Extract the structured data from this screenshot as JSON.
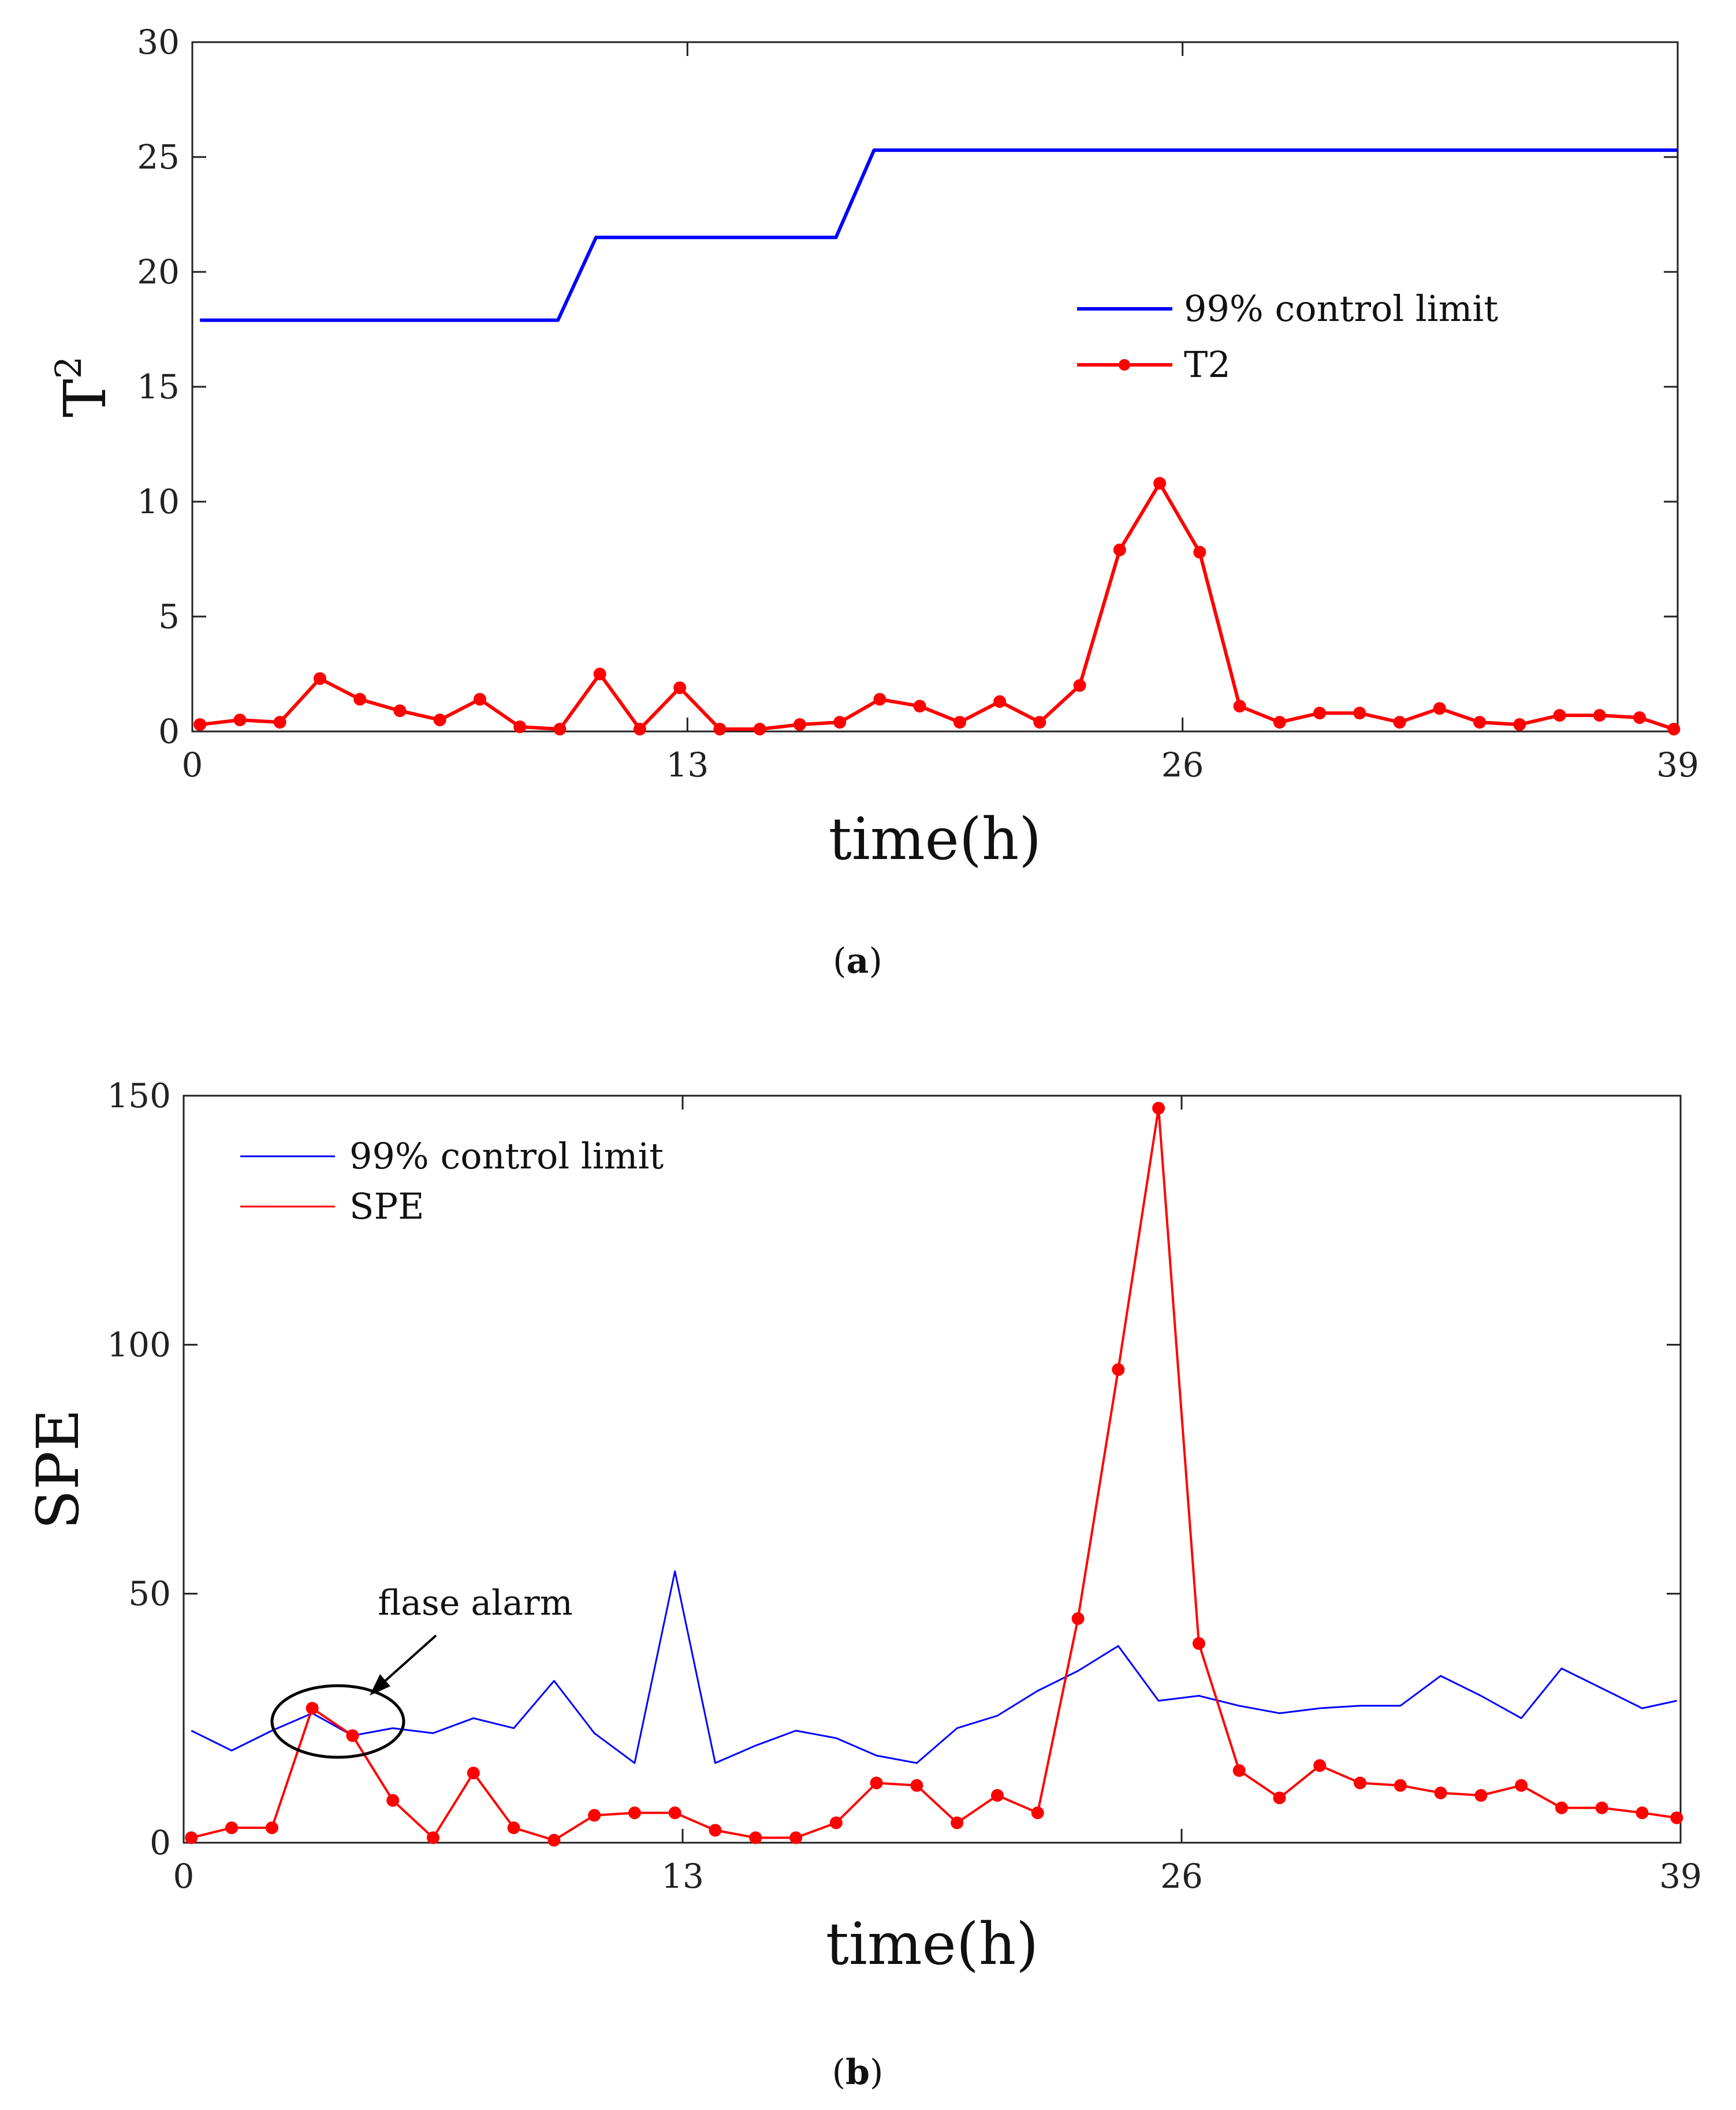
{
  "chart_data": [
    {
      "type": "line",
      "panel": "a",
      "xlabel": "time(h)",
      "ylabel_base": "T",
      "ylabel_sup": "2",
      "xlim": [
        0,
        39
      ],
      "ylim": [
        0,
        30
      ],
      "xticks": [
        0,
        13,
        26,
        39
      ],
      "yticks": [
        0,
        5,
        10,
        15,
        20,
        25,
        30
      ],
      "legend_position": "center-right",
      "panel_label": {
        "open": "(",
        "letter": "a",
        "close": ")"
      },
      "series": [
        {
          "name": "99% control limit",
          "color": "#0000ff",
          "markers": false,
          "x": [
            0.2,
            9.6,
            10.6,
            16.9,
            17.9,
            39
          ],
          "y": [
            17.9,
            17.9,
            21.5,
            21.5,
            25.3,
            25.3
          ]
        },
        {
          "name": "T2",
          "color": "#ff0000",
          "markers": true,
          "x": [
            0.2,
            1.25,
            2.3,
            3.35,
            4.4,
            5.45,
            6.5,
            7.55,
            8.6,
            9.65,
            10.7,
            11.75,
            12.8,
            13.85,
            14.9,
            15.95,
            17.0,
            18.05,
            19.1,
            20.15,
            21.2,
            22.25,
            23.3,
            24.35,
            25.4,
            26.45,
            27.5,
            28.55,
            29.6,
            30.65,
            31.7,
            32.75,
            33.8,
            34.85,
            35.9,
            36.95,
            38.0,
            38.9
          ],
          "y": [
            0.3,
            0.5,
            0.4,
            2.3,
            1.4,
            0.9,
            0.5,
            1.4,
            0.2,
            0.1,
            2.5,
            0.1,
            1.9,
            0.1,
            0.1,
            0.3,
            0.4,
            1.4,
            1.1,
            0.4,
            1.3,
            0.4,
            2.0,
            7.9,
            10.8,
            7.8,
            1.1,
            0.4,
            0.8,
            0.8,
            0.4,
            1.0,
            0.4,
            0.3,
            0.7,
            0.7,
            0.6,
            0.1
          ]
        }
      ]
    },
    {
      "type": "line",
      "panel": "b",
      "xlabel": "time(h)",
      "ylabel": "SPE",
      "xlim": [
        0,
        39
      ],
      "ylim": [
        0,
        150
      ],
      "xticks": [
        0,
        13,
        26,
        39
      ],
      "yticks": [
        0,
        50,
        100,
        150
      ],
      "legend_position": "top-left",
      "annotation": {
        "text": "flase alarm",
        "target_x": 4.1,
        "target_y": 23
      },
      "panel_label": {
        "open": "(",
        "letter": "b",
        "close": ")"
      },
      "series": [
        {
          "name": "99% control limit",
          "color": "#0000ff",
          "markers": false,
          "x": [
            0.2,
            1.25,
            2.3,
            3.35,
            4.4,
            5.45,
            6.5,
            7.55,
            8.6,
            9.65,
            10.7,
            11.75,
            12.8,
            13.85,
            14.9,
            15.95,
            17.0,
            18.05,
            19.1,
            20.15,
            21.2,
            22.25,
            23.3,
            24.35,
            25.4,
            26.45,
            27.5,
            28.55,
            29.6,
            30.65,
            31.7,
            32.75,
            33.8,
            34.85,
            35.9,
            36.95,
            38.0,
            38.9
          ],
          "y": [
            22.5,
            18.5,
            22.5,
            26.0,
            21.5,
            23.0,
            22.0,
            25.0,
            23.0,
            32.5,
            22.0,
            16.0,
            54.5,
            16.0,
            19.5,
            22.5,
            21.0,
            17.5,
            16.0,
            23.0,
            25.5,
            30.5,
            34.5,
            39.5,
            28.5,
            29.5,
            27.5,
            26.0,
            27.0,
            27.5,
            27.5,
            33.5,
            29.5,
            25.0,
            35.0,
            31.0,
            27.0,
            28.5
          ]
        },
        {
          "name": "SPE",
          "color": "#ff0000",
          "markers": true,
          "x": [
            0.2,
            1.25,
            2.3,
            3.35,
            4.4,
            5.45,
            6.5,
            7.55,
            8.6,
            9.65,
            10.7,
            11.75,
            12.8,
            13.85,
            14.9,
            15.95,
            17.0,
            18.05,
            19.1,
            20.15,
            21.2,
            22.25,
            23.3,
            24.35,
            25.4,
            26.45,
            27.5,
            28.55,
            29.6,
            30.65,
            31.7,
            32.75,
            33.8,
            34.85,
            35.9,
            36.95,
            38.0,
            38.9
          ],
          "y": [
            1.0,
            3.0,
            3.0,
            27.0,
            21.5,
            8.5,
            1.0,
            14.0,
            3.0,
            0.5,
            5.5,
            6.0,
            6.0,
            2.5,
            1.0,
            1.0,
            4.0,
            12.0,
            11.5,
            4.0,
            9.5,
            6.0,
            45.0,
            95.0,
            147.5,
            40.0,
            14.5,
            9.0,
            15.5,
            12.0,
            11.5,
            10.0,
            9.5,
            11.5,
            7.0,
            7.0,
            6.0,
            5.0
          ]
        }
      ]
    }
  ]
}
